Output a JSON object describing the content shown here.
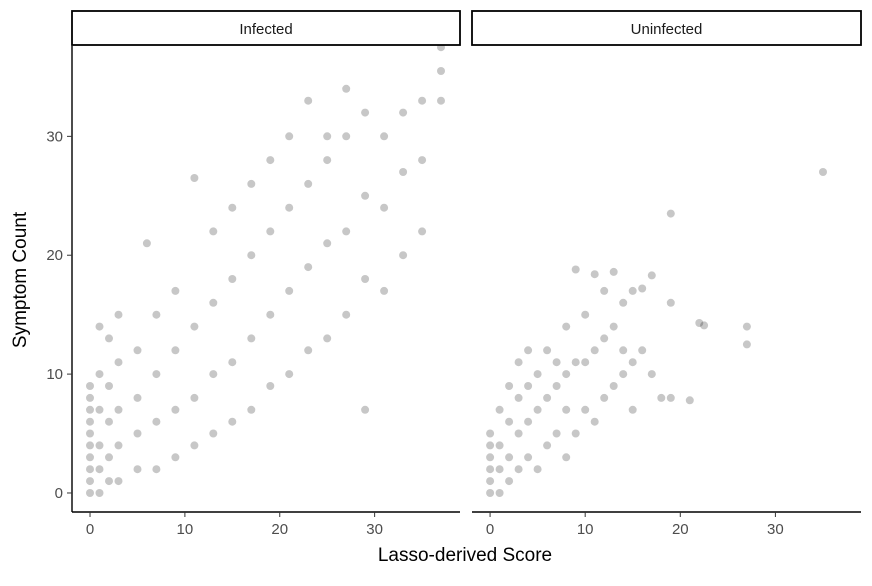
{
  "chart_data": {
    "type": "scatter",
    "xlabel": "Lasso-derived Score",
    "ylabel": "Symptom Count",
    "xlim": [
      -1.9,
      39
    ],
    "ylim": [
      -1.6,
      37.6
    ],
    "x_ticks": [
      0,
      10,
      20,
      30
    ],
    "y_ticks": [
      0,
      10,
      20,
      30
    ],
    "grid": false,
    "point_color": "#000000",
    "point_alpha": 0.22,
    "facets": [
      {
        "label": "Infected",
        "n_points_approx": 4500,
        "distribution": "dense positive linear trend; symptom count rises roughly with lasso-derived score",
        "points": [
          [
            0,
            0
          ],
          [
            0,
            1
          ],
          [
            0,
            2
          ],
          [
            0,
            3
          ],
          [
            0,
            4
          ],
          [
            0,
            5
          ],
          [
            0,
            6
          ],
          [
            0,
            7
          ],
          [
            0,
            8
          ],
          [
            0,
            9
          ],
          [
            1,
            0
          ],
          [
            1,
            2
          ],
          [
            1,
            4
          ],
          [
            1,
            7
          ],
          [
            1,
            10
          ],
          [
            1,
            14
          ],
          [
            2,
            1
          ],
          [
            2,
            3
          ],
          [
            2,
            6
          ],
          [
            2,
            9
          ],
          [
            2,
            13
          ],
          [
            3,
            1
          ],
          [
            3,
            4
          ],
          [
            3,
            7
          ],
          [
            3,
            11
          ],
          [
            3,
            15
          ],
          [
            5,
            2
          ],
          [
            5,
            5
          ],
          [
            5,
            8
          ],
          [
            5,
            12
          ],
          [
            6,
            21
          ],
          [
            7,
            2
          ],
          [
            7,
            6
          ],
          [
            7,
            10
          ],
          [
            7,
            15
          ],
          [
            9,
            3
          ],
          [
            9,
            7
          ],
          [
            9,
            12
          ],
          [
            9,
            17
          ],
          [
            11,
            4
          ],
          [
            11,
            8
          ],
          [
            11,
            14
          ],
          [
            11,
            26.5
          ],
          [
            13,
            5
          ],
          [
            13,
            10
          ],
          [
            13,
            16
          ],
          [
            13,
            22
          ],
          [
            15,
            6
          ],
          [
            15,
            11
          ],
          [
            15,
            18
          ],
          [
            15,
            24
          ],
          [
            17,
            7
          ],
          [
            17,
            13
          ],
          [
            17,
            20
          ],
          [
            17,
            26
          ],
          [
            19,
            9
          ],
          [
            19,
            15
          ],
          [
            19,
            22
          ],
          [
            19,
            28
          ],
          [
            21,
            10
          ],
          [
            21,
            17
          ],
          [
            21,
            24
          ],
          [
            21,
            30
          ],
          [
            23,
            12
          ],
          [
            23,
            19
          ],
          [
            23,
            26
          ],
          [
            23,
            33
          ],
          [
            25,
            13
          ],
          [
            25,
            21
          ],
          [
            25,
            28
          ],
          [
            25,
            30
          ],
          [
            27,
            15
          ],
          [
            27,
            22
          ],
          [
            27,
            30
          ],
          [
            27,
            34
          ],
          [
            29,
            7
          ],
          [
            29,
            18
          ],
          [
            29,
            25
          ],
          [
            29,
            32
          ],
          [
            31,
            17
          ],
          [
            31,
            24
          ],
          [
            31,
            30
          ],
          [
            33,
            20
          ],
          [
            33,
            27
          ],
          [
            33,
            32
          ],
          [
            35,
            22
          ],
          [
            35,
            28
          ],
          [
            35,
            33
          ],
          [
            37,
            37.5
          ],
          [
            37,
            35.5
          ],
          [
            37,
            33
          ]
        ]
      },
      {
        "label": "Uninfected",
        "n_points_approx": 550,
        "distribution": "concentrated near zero with sparse positive trend",
        "points": [
          [
            0,
            0
          ],
          [
            0,
            1
          ],
          [
            0,
            2
          ],
          [
            0,
            3
          ],
          [
            0,
            4
          ],
          [
            0,
            5
          ],
          [
            1,
            0
          ],
          [
            1,
            2
          ],
          [
            1,
            4
          ],
          [
            1,
            7
          ],
          [
            2,
            1
          ],
          [
            2,
            3
          ],
          [
            2,
            6
          ],
          [
            2,
            9
          ],
          [
            3,
            2
          ],
          [
            3,
            5
          ],
          [
            3,
            8
          ],
          [
            3,
            11
          ],
          [
            4,
            3
          ],
          [
            4,
            6
          ],
          [
            4,
            9
          ],
          [
            4,
            12
          ],
          [
            5,
            2
          ],
          [
            5,
            7
          ],
          [
            5,
            10
          ],
          [
            6,
            4
          ],
          [
            6,
            8
          ],
          [
            6,
            12
          ],
          [
            7,
            5
          ],
          [
            7,
            9
          ],
          [
            7,
            11
          ],
          [
            8,
            3
          ],
          [
            8,
            7
          ],
          [
            8,
            10
          ],
          [
            8,
            14
          ],
          [
            9,
            5
          ],
          [
            9,
            11
          ],
          [
            9,
            18.8
          ],
          [
            10,
            7
          ],
          [
            10,
            11
          ],
          [
            10,
            15
          ],
          [
            11,
            6
          ],
          [
            11,
            12
          ],
          [
            11,
            18.4
          ],
          [
            12,
            8
          ],
          [
            12,
            13
          ],
          [
            12,
            17
          ],
          [
            13,
            9
          ],
          [
            13,
            14
          ],
          [
            13,
            18.6
          ],
          [
            14,
            10
          ],
          [
            14,
            12
          ],
          [
            14,
            16
          ],
          [
            15,
            7
          ],
          [
            15,
            11
          ],
          [
            15,
            17
          ],
          [
            16,
            12
          ],
          [
            16,
            17.2
          ],
          [
            17,
            10
          ],
          [
            17,
            18.3
          ],
          [
            18,
            8
          ],
          [
            19,
            16
          ],
          [
            19,
            23.5
          ],
          [
            19,
            8
          ],
          [
            21,
            7.8
          ],
          [
            22,
            14.3
          ],
          [
            22.5,
            14.1
          ],
          [
            27,
            12.5
          ],
          [
            27,
            14
          ],
          [
            35,
            27
          ]
        ]
      }
    ]
  }
}
